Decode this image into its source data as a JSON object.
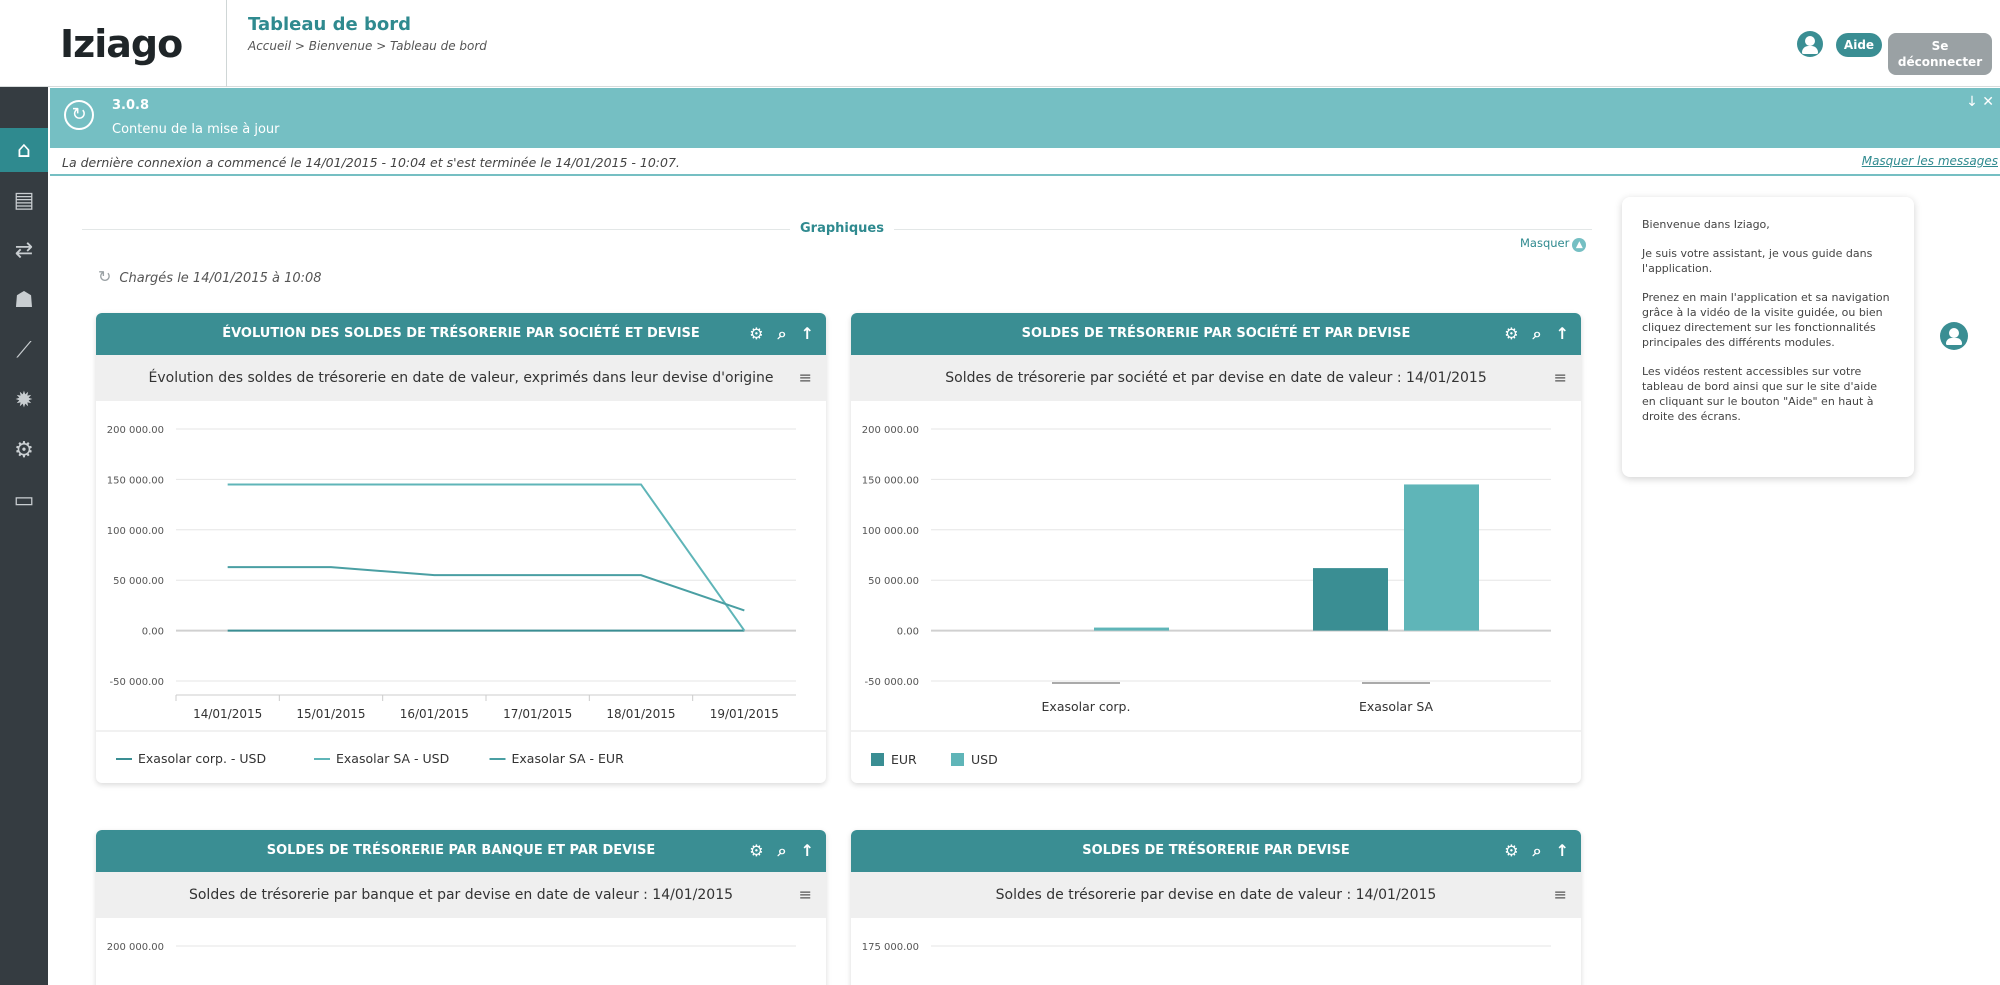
{
  "header": {
    "logo": "Iziago",
    "title": "Tableau de bord",
    "breadcrumb": "Accueil > Bienvenue > Tableau de bord",
    "help_label": "Aide",
    "logout_label": "Se déconnecter"
  },
  "sidebar": {
    "items": [
      {
        "icon": "home-icon",
        "glyph": "⌂",
        "active": true
      },
      {
        "icon": "document-icon",
        "glyph": "▤",
        "active": false
      },
      {
        "icon": "treasury-icon",
        "glyph": "⇄",
        "active": false
      },
      {
        "icon": "users-icon",
        "glyph": "☗",
        "active": false
      },
      {
        "icon": "chart-icon",
        "glyph": "⟋",
        "active": false
      },
      {
        "icon": "settings-icon",
        "glyph": "✹",
        "active": false
      },
      {
        "icon": "admin-icon",
        "glyph": "⚙",
        "active": false
      },
      {
        "icon": "id-card-icon",
        "glyph": "▭",
        "active": false
      }
    ]
  },
  "banner": {
    "version": "3.0.8",
    "text": "Contenu de la mise à jour",
    "actions": "↓ ✕"
  },
  "lastlogin": {
    "text": "La dernière connexion a commencé le 14/01/2015 - 10:04 et s'est terminée le 14/01/2015 - 10:07.",
    "hide_messages": "Masquer les messages"
  },
  "graphics": {
    "section_title": "Graphiques",
    "hide_label": "Masquer",
    "loaded_text": "Chargés le 14/01/2015 à 10:08"
  },
  "widgets": [
    {
      "title": "ÉVOLUTION DES SOLDES DE TRÉSORERIE PAR SOCIÉTÉ ET DEVISE",
      "subtitle": "Évolution des soldes de trésorerie en date de valeur, exprimés dans leur devise d'origine",
      "legend": [
        "Exasolar corp. - USD",
        "Exasolar SA - USD",
        "Exasolar SA - EUR"
      ]
    },
    {
      "title": "SOLDES DE TRÉSORERIE PAR SOCIÉTÉ ET PAR DEVISE",
      "subtitle": "Soldes de trésorerie par société et par devise en date de valeur : 14/01/2015",
      "legend": [
        "EUR",
        "USD"
      ]
    },
    {
      "title": "SOLDES DE TRÉSORERIE PAR BANQUE ET PAR DEVISE",
      "subtitle": "Soldes de trésorerie par banque et par devise en date de valeur : 14/01/2015"
    },
    {
      "title": "SOLDES DE TRÉSORERIE PAR DEVISE",
      "subtitle": "Soldes de trésorerie par devise en date de valeur : 14/01/2015"
    }
  ],
  "assistant": {
    "p1": "Bienvenue dans Iziago,",
    "p2": "Je suis votre assistant, je vous guide dans l'application.",
    "p3": "Prenez en main l'application et sa navigation grâce à la vidéo de la visite guidée, ou bien cliquez directement sur les fonctionnalités principales des différents modules.",
    "p4": "Les vidéos restent accessibles sur votre tableau de bord ainsi que sur le site d'aide en cliquant sur le bouton \"Aide\" en haut à droite des écrans."
  },
  "colors": {
    "teal_dark": "#3a8e93",
    "teal_light": "#5fb5b8",
    "teal_mid": "#4a9fa3"
  },
  "chart_data": [
    {
      "type": "line",
      "x": [
        "14/01/2015",
        "15/01/2015",
        "16/01/2015",
        "17/01/2015",
        "18/01/2015",
        "19/01/2015"
      ],
      "ylim": [
        -50000,
        200000
      ],
      "yticks": [
        "200 000.00",
        "150 000.00",
        "100 000.00",
        "50 000.00",
        "0.00",
        "-50 000.00"
      ],
      "ytick_values": [
        200000,
        150000,
        100000,
        50000,
        0,
        -50000
      ],
      "series": [
        {
          "name": "Exasolar corp. - USD",
          "values": [
            0,
            0,
            0,
            0,
            0,
            0
          ],
          "color": "#3a8e93"
        },
        {
          "name": "Exasolar SA - USD",
          "values": [
            145000,
            145000,
            145000,
            145000,
            145000,
            0
          ],
          "color": "#5fb5b8"
        },
        {
          "name": "Exasolar SA - EUR",
          "values": [
            63000,
            63000,
            55000,
            55000,
            55000,
            20000
          ],
          "color": "#4a9fa3"
        }
      ]
    },
    {
      "type": "bar",
      "categories": [
        "Exasolar corp.",
        "Exasolar SA"
      ],
      "ylim": [
        -50000,
        200000
      ],
      "yticks": [
        "200 000.00",
        "150 000.00",
        "100 000.00",
        "50 000.00",
        "0.00",
        "-50 000.00"
      ],
      "ytick_values": [
        200000,
        150000,
        100000,
        50000,
        0,
        -50000
      ],
      "series": [
        {
          "name": "EUR",
          "values": [
            0,
            62000
          ],
          "color": "#3a8e93"
        },
        {
          "name": "USD",
          "values": [
            3000,
            145000
          ],
          "color": "#5fb5b8"
        }
      ]
    },
    {
      "type": "line",
      "yticks": [
        "200 000.00"
      ]
    },
    {
      "type": "bar",
      "yticks": [
        "175 000.00"
      ]
    }
  ]
}
